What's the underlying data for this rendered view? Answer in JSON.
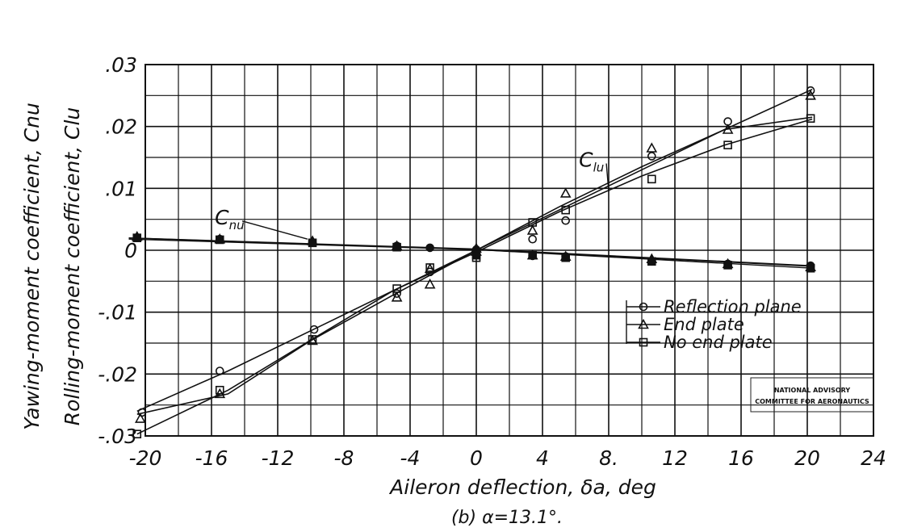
{
  "chart_data": {
    "type": "scatter",
    "title": "",
    "caption": "(b)  α=13.1°.",
    "xlabel": "Aileron deflection, δa, deg",
    "ylabel": [
      "Yawing-moment coefficient, Cnu",
      "Rolling-moment coefficient, Clu"
    ],
    "xlim": [
      -20,
      24
    ],
    "ylim": [
      -0.03,
      0.03
    ],
    "x_ticks": [
      -20,
      -16,
      -12,
      -8,
      -4,
      0,
      4,
      8,
      12,
      16,
      20,
      24
    ],
    "x_tick_labels": [
      "-20",
      "-16",
      "-12",
      "-8",
      "-4",
      "0",
      "4",
      "8.",
      "12",
      "16",
      "20",
      "24"
    ],
    "y_ticks": [
      -0.03,
      -0.02,
      -0.01,
      0,
      0.01,
      0.02,
      0.03
    ],
    "y_tick_labels": [
      "-.03",
      "-.02",
      "-.01",
      "0",
      ".01",
      ".02",
      ".03"
    ],
    "grid": true,
    "legend_position": "right",
    "annotations": [
      {
        "text": "C",
        "sub": "lu",
        "x": 6.2,
        "y": 0.0135,
        "target_x": 8,
        "target_y": 0.0095
      },
      {
        "text": "C",
        "sub": "nu",
        "x": -15.8,
        "y": 0.0042,
        "target_x": -10.2,
        "target_y": 0.0018
      }
    ],
    "stamp": [
      "NATIONAL ADVISORY",
      "COMMITTEE FOR AERONAUTICS"
    ],
    "series": [
      {
        "name": "Reflection plane",
        "marker": "circle",
        "rolling": [
          [
            -20.2,
            -0.0262
          ],
          [
            -15.5,
            -0.0195
          ],
          [
            -9.8,
            -0.0128
          ],
          [
            -4.8,
            -0.007
          ],
          [
            -2.8,
            -0.0035
          ],
          [
            0,
            -0.0003
          ],
          [
            3.4,
            0.0018
          ],
          [
            5.4,
            0.0048
          ],
          [
            10.6,
            0.0152
          ],
          [
            15.2,
            0.0208
          ],
          [
            20.2,
            0.0258
          ]
        ],
        "yawing": [
          [
            -20.5,
            0.002
          ],
          [
            -15.5,
            0.0018
          ],
          [
            -9.9,
            0.0012
          ],
          [
            -4.8,
            0.0007
          ],
          [
            -2.8,
            0.0004
          ],
          [
            0,
            0.0001
          ],
          [
            3.4,
            -0.0009
          ],
          [
            5.4,
            -0.001
          ],
          [
            10.6,
            -0.0018
          ],
          [
            15.2,
            -0.0022
          ],
          [
            20.2,
            -0.0025
          ]
        ],
        "rolling_fit": [
          [
            -20.5,
            -0.026
          ],
          [
            -15,
            -0.0195
          ],
          [
            -10,
            -0.013
          ],
          [
            -5,
            -0.0065
          ],
          [
            0,
            0
          ],
          [
            5,
            0.0065
          ],
          [
            10,
            0.013
          ],
          [
            15,
            0.0195
          ],
          [
            20.3,
            0.026
          ]
        ],
        "yawing_fit": [
          [
            -21,
            0.002
          ],
          [
            0,
            0.0002
          ],
          [
            20.3,
            -0.0025
          ]
        ]
      },
      {
        "name": "End plate",
        "marker": "triangle",
        "rolling": [
          [
            -20.3,
            -0.0272
          ],
          [
            -15.5,
            -0.0232
          ],
          [
            -9.9,
            -0.0146
          ],
          [
            -4.8,
            -0.0076
          ],
          [
            -2.8,
            -0.0055
          ],
          [
            -2.8,
            -0.003
          ],
          [
            0,
            0.0003
          ],
          [
            3.4,
            0.0032
          ],
          [
            5.4,
            0.0092
          ],
          [
            10.6,
            0.0165
          ],
          [
            15.2,
            0.0195
          ],
          [
            20.2,
            0.025
          ]
        ],
        "yawing": [
          [
            -20.5,
            0.0022
          ],
          [
            -15.5,
            0.0018
          ],
          [
            -9.9,
            0.0015
          ],
          [
            -4.8,
            0.0007
          ],
          [
            0,
            -0.0002
          ],
          [
            3.4,
            -0.0008
          ],
          [
            5.4,
            -0.001
          ],
          [
            10.6,
            -0.0014
          ],
          [
            15.2,
            -0.0022
          ],
          [
            20.2,
            -0.0027
          ]
        ],
        "rolling_fit": [
          [
            -20.5,
            -0.0265
          ],
          [
            -15,
            -0.0232
          ],
          [
            -10,
            -0.0146
          ],
          [
            -5,
            -0.0072
          ],
          [
            0,
            0
          ],
          [
            5,
            0.007
          ],
          [
            10,
            0.0135
          ],
          [
            15,
            0.0195
          ],
          [
            20.3,
            0.0215
          ]
        ],
        "yawing_fit": [
          [
            -21,
            0.0018
          ],
          [
            0,
            0.0001
          ],
          [
            20.3,
            -0.0026
          ]
        ]
      },
      {
        "name": "No end plate",
        "marker": "square",
        "rolling": [
          [
            -20.5,
            -0.0297
          ],
          [
            -15.5,
            -0.0226
          ],
          [
            -9.9,
            -0.0144
          ],
          [
            -4.8,
            -0.0062
          ],
          [
            -2.8,
            -0.0028
          ],
          [
            0,
            -0.0012
          ],
          [
            3.4,
            0.0045
          ],
          [
            5.4,
            0.0065
          ],
          [
            10.6,
            0.0115
          ],
          [
            15.2,
            0.017
          ],
          [
            20.2,
            0.0213
          ]
        ],
        "yawing": [
          [
            -20.5,
            0.002
          ],
          [
            -15.5,
            0.0017
          ],
          [
            -9.9,
            0.0012
          ],
          [
            -4.8,
            0.0005
          ],
          [
            0,
            -0.0008
          ],
          [
            3.4,
            -0.0008
          ],
          [
            5.4,
            -0.0012
          ],
          [
            10.6,
            -0.0018
          ],
          [
            15.2,
            -0.0024
          ],
          [
            20.2,
            -0.0029
          ]
        ],
        "rolling_fit": [
          [
            -20.5,
            -0.0297
          ],
          [
            -15,
            -0.0226
          ],
          [
            -10,
            -0.0145
          ],
          [
            -5,
            -0.0065
          ],
          [
            0,
            -0.0003
          ],
          [
            5,
            0.0062
          ],
          [
            10,
            0.012
          ],
          [
            15,
            0.017
          ],
          [
            20.3,
            0.0212
          ]
        ],
        "yawing_fit": [
          [
            -21,
            0.002
          ],
          [
            0,
            0.0001
          ],
          [
            20.3,
            -0.0029
          ]
        ]
      }
    ]
  }
}
